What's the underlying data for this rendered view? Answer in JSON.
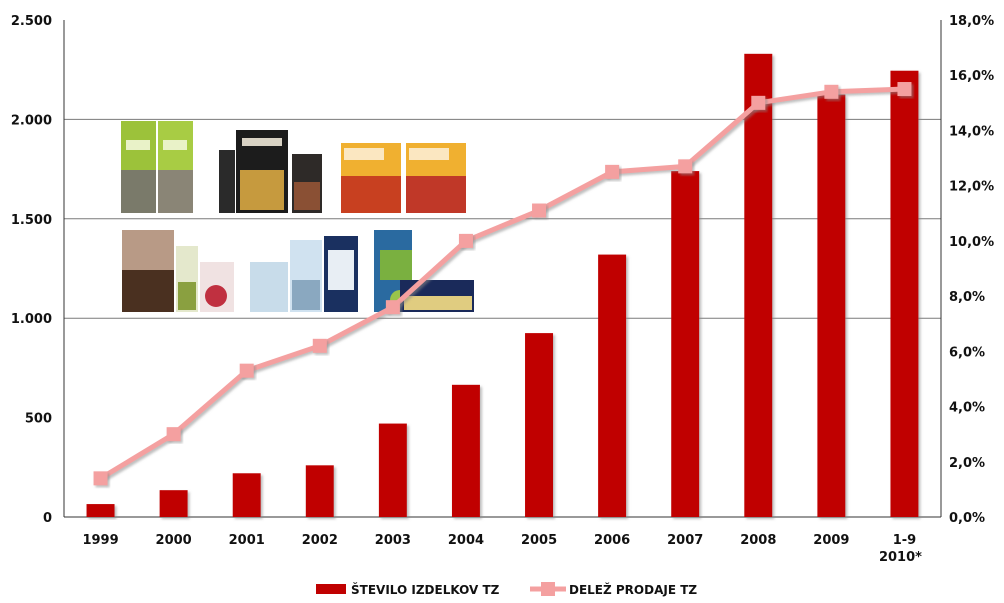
{
  "chart_data": {
    "type": "bar",
    "categories": [
      "1999",
      "2000",
      "2001",
      "2002",
      "2003",
      "2004",
      "2005",
      "2006",
      "2007",
      "2008",
      "2009",
      "1-9 2010*"
    ],
    "series": [
      {
        "name": "ŠTEVILO IZDELKOV TZ",
        "type": "bar",
        "axis": "left",
        "color": "#c00000",
        "values": [
          65,
          135,
          220,
          260,
          470,
          665,
          925,
          1320,
          1740,
          2330,
          2125,
          2245
        ]
      },
      {
        "name": "DELEŽ PRODAJE TZ",
        "type": "line",
        "axis": "right",
        "color": "#f4a0a0",
        "values": [
          1.4,
          3.0,
          5.3,
          6.2,
          7.6,
          10.0,
          11.1,
          12.5,
          12.7,
          15.0,
          15.4,
          15.5
        ]
      }
    ],
    "y_left": {
      "min": 0,
      "max": 2500,
      "ticks": [
        0,
        500,
        1000,
        1500,
        2000,
        2500
      ],
      "tick_labels": [
        "0",
        "500",
        "1.000",
        "1.500",
        "2.000",
        "2.500"
      ]
    },
    "y_right": {
      "min": 0,
      "max": 18,
      "ticks": [
        0,
        2,
        4,
        6,
        8,
        10,
        12,
        14,
        16,
        18
      ],
      "tick_labels": [
        "0,0%",
        "2,0%",
        "4,0%",
        "6,0%",
        "8,0%",
        "10,0%",
        "12,0%",
        "14,0%",
        "16,0%",
        "18,0%"
      ]
    },
    "x_labels": [
      [
        "1999"
      ],
      [
        "2000"
      ],
      [
        "2001"
      ],
      [
        "2002"
      ],
      [
        "2003"
      ],
      [
        "2004"
      ],
      [
        "2005"
      ],
      [
        "2006"
      ],
      [
        "2007"
      ],
      [
        "2008"
      ],
      [
        "2009"
      ],
      [
        "1-9",
        "2010*"
      ]
    ],
    "gridlines": [
      1000,
      1500,
      2000
    ],
    "legend_position": "bottom",
    "product_images": [
      {
        "icon": "rio-organic-pack"
      },
      {
        "icon": "premium-pack"
      },
      {
        "icon": "on-the-go-pack"
      },
      {
        "icon": "spice-and-tea-pack"
      },
      {
        "icon": "hygiene-pack"
      },
      {
        "icon": "fruit-juice-pack"
      }
    ]
  }
}
